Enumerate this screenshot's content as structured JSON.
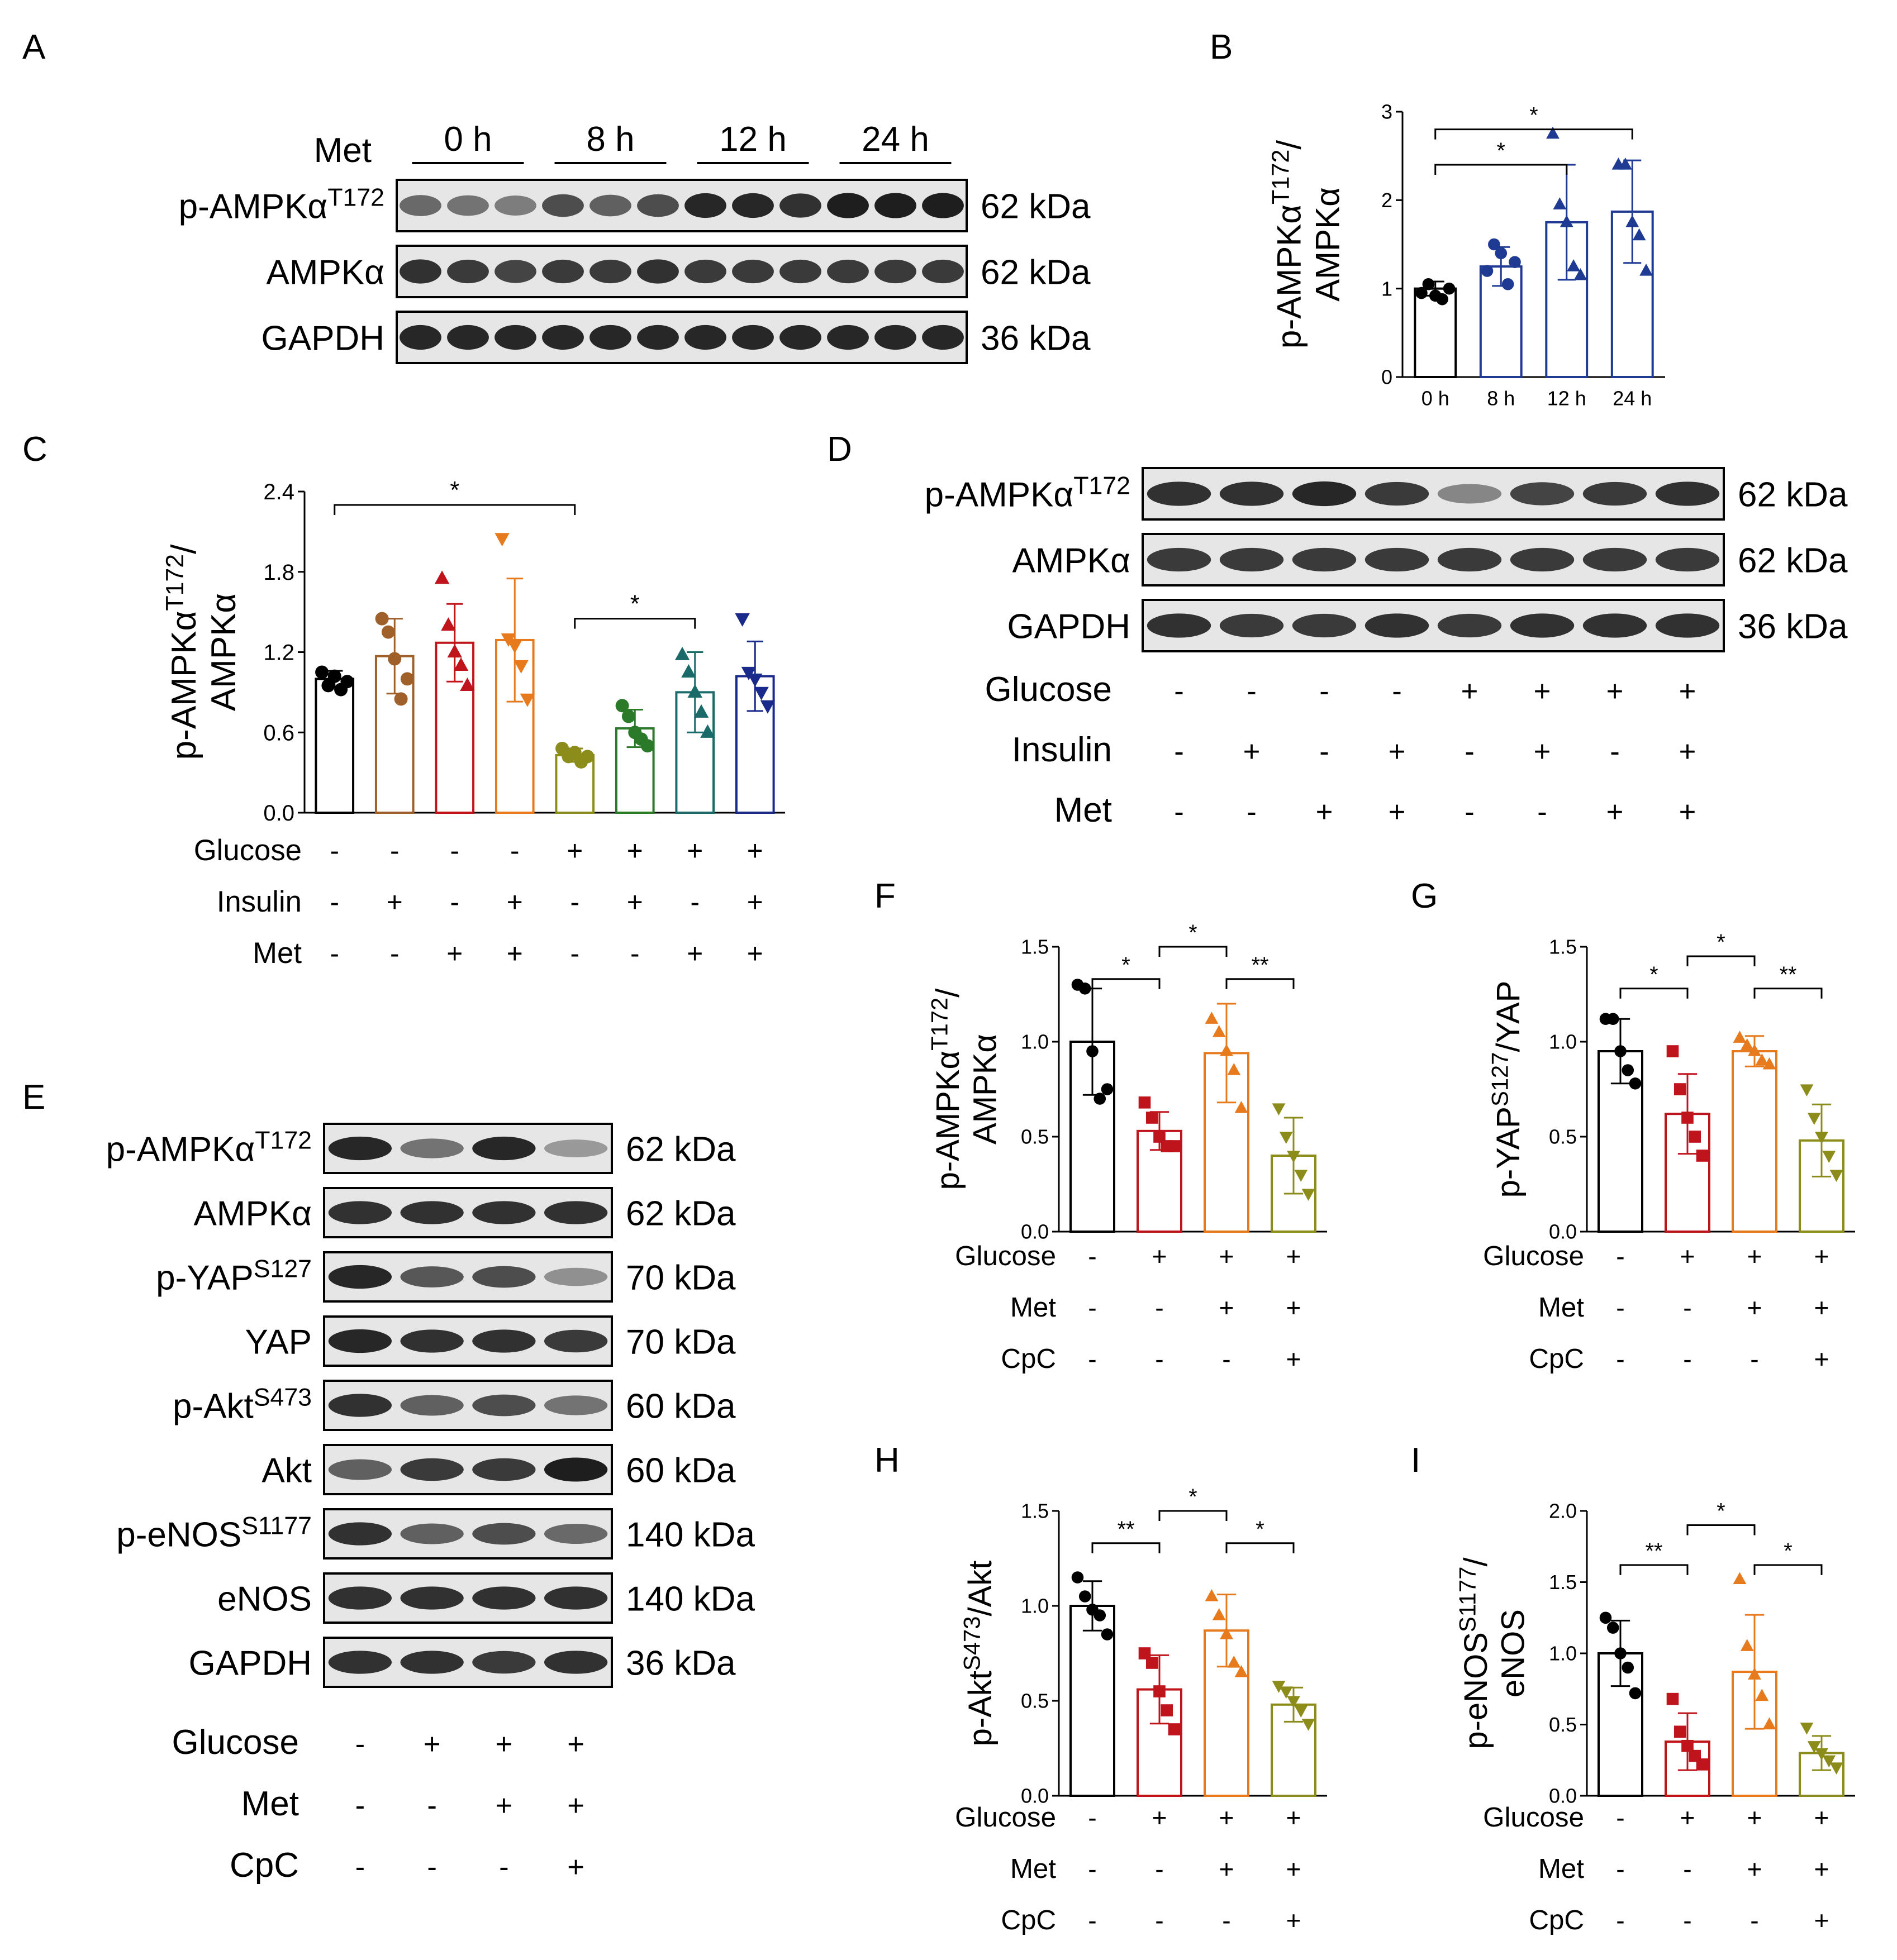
{
  "panels": {
    "A": {
      "label": "A",
      "met_label": "Met",
      "time_groups": [
        "0 h",
        "8 h",
        "12 h",
        "24 h"
      ],
      "bands": [
        {
          "name": "p-AMPKα",
          "sup": "T172",
          "kda": "62 kDa",
          "intensity": [
            0.55,
            0.5,
            0.45,
            0.7,
            0.6,
            0.7,
            0.9,
            0.9,
            0.85,
            0.95,
            0.95,
            0.95
          ]
        },
        {
          "name": "AMPKα",
          "sup": "",
          "kda": "62 kDa",
          "intensity": [
            0.85,
            0.8,
            0.75,
            0.8,
            0.8,
            0.85,
            0.8,
            0.8,
            0.8,
            0.8,
            0.8,
            0.8
          ]
        },
        {
          "name": "GAPDH",
          "sup": "",
          "kda": "36 kDa",
          "intensity": [
            0.9,
            0.9,
            0.9,
            0.9,
            0.9,
            0.9,
            0.9,
            0.9,
            0.9,
            0.9,
            0.9,
            0.9
          ]
        }
      ]
    },
    "D": {
      "label": "D",
      "bands": [
        {
          "name": "p-AMPKα",
          "sup": "T172",
          "kda": "62 kDa",
          "intensity": [
            0.85,
            0.85,
            0.9,
            0.8,
            0.4,
            0.75,
            0.8,
            0.85
          ]
        },
        {
          "name": "AMPKα",
          "sup": "",
          "kda": "62 kDa",
          "intensity": [
            0.8,
            0.8,
            0.8,
            0.8,
            0.8,
            0.8,
            0.8,
            0.8
          ]
        },
        {
          "name": "GAPDH",
          "sup": "",
          "kda": "36 kDa",
          "intensity": [
            0.85,
            0.8,
            0.8,
            0.85,
            0.8,
            0.85,
            0.85,
            0.85
          ]
        }
      ],
      "conditions": [
        {
          "name": "Glucose",
          "values": [
            "-",
            "-",
            "-",
            "-",
            "+",
            "+",
            "+",
            "+"
          ]
        },
        {
          "name": "Insulin",
          "values": [
            "-",
            "+",
            "-",
            "+",
            "-",
            "+",
            "-",
            "+"
          ]
        },
        {
          "name": "Met",
          "values": [
            "-",
            "-",
            "+",
            "+",
            "-",
            "-",
            "+",
            "+"
          ]
        }
      ]
    },
    "E": {
      "label": "E",
      "bands": [
        {
          "name": "p-AMPKα",
          "sup": "T172",
          "kda": "62 kDa",
          "intensity": [
            0.9,
            0.5,
            0.9,
            0.3
          ]
        },
        {
          "name": "AMPKα",
          "sup": "",
          "kda": "62 kDa",
          "intensity": [
            0.85,
            0.85,
            0.85,
            0.85
          ]
        },
        {
          "name": "p-YAP",
          "sup": "S127",
          "kda": "70 kDa",
          "intensity": [
            0.9,
            0.65,
            0.7,
            0.35
          ]
        },
        {
          "name": "YAP",
          "sup": "",
          "kda": "70 kDa",
          "intensity": [
            0.9,
            0.85,
            0.85,
            0.8
          ]
        },
        {
          "name": "p-Akt",
          "sup": "S473",
          "kda": "60 kDa",
          "intensity": [
            0.85,
            0.6,
            0.7,
            0.5
          ]
        },
        {
          "name": "Akt",
          "sup": "",
          "kda": "60 kDa",
          "intensity": [
            0.6,
            0.8,
            0.8,
            0.95
          ]
        },
        {
          "name": "p-eNOS",
          "sup": "S1177",
          "kda": "140 kDa",
          "intensity": [
            0.85,
            0.6,
            0.7,
            0.55
          ]
        },
        {
          "name": "eNOS",
          "sup": "",
          "kda": "140 kDa",
          "intensity": [
            0.85,
            0.85,
            0.85,
            0.85
          ]
        },
        {
          "name": "GAPDH",
          "sup": "",
          "kda": "36 kDa",
          "intensity": [
            0.85,
            0.85,
            0.8,
            0.85
          ]
        }
      ],
      "conditions": [
        {
          "name": "Glucose",
          "values": [
            "-",
            "+",
            "+",
            "+"
          ]
        },
        {
          "name": "Met",
          "values": [
            "-",
            "-",
            "+",
            "+"
          ]
        },
        {
          "name": "CpC",
          "values": [
            "-",
            "-",
            "-",
            "+"
          ]
        }
      ]
    }
  },
  "chart_data": [
    {
      "id": "B",
      "label": "B",
      "type": "bar",
      "ylabel_main": "p-AMPKα",
      "ylabel_sup": "T172",
      "ylabel_tail": "/",
      "ylabel_line2": "AMPKα",
      "ylim": [
        0,
        3
      ],
      "yticks": [
        "0",
        "1",
        "2",
        "3"
      ],
      "categories": [
        "0 h",
        "8 h",
        "12 h",
        "24 h"
      ],
      "values": [
        1.0,
        1.25,
        1.75,
        1.87
      ],
      "errors": [
        0.08,
        0.22,
        0.65,
        0.58
      ],
      "points": [
        [
          0.95,
          1.05,
          0.92,
          0.88,
          1.0
        ],
        [
          1.2,
          1.5,
          1.4,
          1.05,
          1.3
        ],
        [
          2.75,
          1.95,
          1.75,
          1.25,
          1.15
        ],
        [
          2.4,
          2.4,
          1.75,
          1.6,
          1.2
        ]
      ],
      "colors": [
        "#000000",
        "#1f3a93",
        "#1f3a93",
        "#1f3a93"
      ],
      "markers": [
        "circle",
        "circle",
        "triangle",
        "triangle"
      ],
      "significance": [
        {
          "from": 0,
          "to": 2,
          "level": 2.4,
          "text": "*"
        },
        {
          "from": 0,
          "to": 3,
          "level": 2.8,
          "text": "*"
        }
      ],
      "x_conditions": []
    },
    {
      "id": "C",
      "label": "C",
      "type": "bar",
      "ylabel_main": "p-AMPKα",
      "ylabel_sup": "T172",
      "ylabel_tail": "/",
      "ylabel_line2": "AMPKα",
      "ylim": [
        0,
        2.4
      ],
      "yticks": [
        "0.0",
        "0.6",
        "1.2",
        "1.8",
        "2.4"
      ],
      "categories": [
        "",
        "",
        "",
        "",
        "",
        "",
        "",
        ""
      ],
      "values": [
        1.0,
        1.17,
        1.27,
        1.29,
        0.43,
        0.63,
        0.9,
        1.02
      ],
      "errors": [
        0.06,
        0.28,
        0.29,
        0.46,
        0.05,
        0.14,
        0.3,
        0.26
      ],
      "points": [
        [
          1.05,
          0.95,
          1.02,
          0.92,
          0.98
        ],
        [
          1.45,
          1.35,
          1.15,
          0.85,
          1.0
        ],
        [
          1.75,
          1.4,
          1.2,
          1.1,
          0.95
        ],
        [
          2.05,
          1.3,
          1.25,
          1.1,
          0.85
        ],
        [
          0.48,
          0.42,
          0.45,
          0.38,
          0.42
        ],
        [
          0.8,
          0.72,
          0.6,
          0.55,
          0.5
        ],
        [
          1.18,
          1.05,
          0.9,
          0.75,
          0.6
        ],
        [
          1.45,
          1.05,
          1.0,
          0.9,
          0.8
        ]
      ],
      "colors": [
        "#000000",
        "#a0602a",
        "#c0141c",
        "#e87a1e",
        "#8c8c1a",
        "#2a7a2a",
        "#1a6a6a",
        "#1a2a8a"
      ],
      "markers": [
        "circle",
        "circle",
        "triangle",
        "triangle-down",
        "circle",
        "circle",
        "triangle",
        "triangle-down"
      ],
      "significance": [
        {
          "from": 0,
          "to": 4,
          "level": 2.3,
          "text": "*"
        },
        {
          "from": 4,
          "to": 6,
          "level": 1.45,
          "text": "*"
        }
      ],
      "x_conditions": [
        {
          "name": "Glucose",
          "values": [
            "-",
            "-",
            "-",
            "-",
            "+",
            "+",
            "+",
            "+"
          ]
        },
        {
          "name": "Insulin",
          "values": [
            "-",
            "+",
            "-",
            "+",
            "-",
            "+",
            "-",
            "+"
          ]
        },
        {
          "name": "Met",
          "values": [
            "-",
            "-",
            "+",
            "+",
            "-",
            "-",
            "+",
            "+"
          ]
        }
      ]
    },
    {
      "id": "F",
      "label": "F",
      "type": "bar",
      "ylabel_main": "p-AMPKα",
      "ylabel_sup": "T172",
      "ylabel_tail": "/",
      "ylabel_line2": "AMPKα",
      "ylim": [
        0,
        1.5
      ],
      "yticks": [
        "0.0",
        "0.5",
        "1.0",
        "1.5"
      ],
      "categories": [
        "",
        "",
        "",
        ""
      ],
      "values": [
        1.0,
        0.53,
        0.94,
        0.4
      ],
      "errors": [
        0.28,
        0.1,
        0.26,
        0.2
      ],
      "points": [
        [
          1.3,
          1.28,
          0.95,
          0.7,
          0.75
        ],
        [
          0.68,
          0.6,
          0.5,
          0.45,
          0.45
        ],
        [
          1.12,
          1.05,
          0.95,
          0.85,
          0.65
        ],
        [
          0.65,
          0.5,
          0.4,
          0.3,
          0.2
        ]
      ],
      "colors": [
        "#000000",
        "#c0141c",
        "#e87a1e",
        "#8c8c1a"
      ],
      "markers": [
        "circle",
        "square",
        "triangle",
        "triangle-down"
      ],
      "significance": [
        {
          "from": 0,
          "to": 1,
          "level": 1.33,
          "text": "*"
        },
        {
          "from": 1,
          "to": 2,
          "level": 1.5,
          "text": "*"
        },
        {
          "from": 2,
          "to": 3,
          "level": 1.33,
          "text": "**"
        }
      ],
      "x_conditions": [
        {
          "name": "Glucose",
          "values": [
            "-",
            "+",
            "+",
            "+"
          ]
        },
        {
          "name": "Met",
          "values": [
            "-",
            "-",
            "+",
            "+"
          ]
        },
        {
          "name": "CpC",
          "values": [
            "-",
            "-",
            "-",
            "+"
          ]
        }
      ]
    },
    {
      "id": "G",
      "label": "G",
      "type": "bar",
      "ylabel_main": "p-YAP",
      "ylabel_sup": "S127",
      "ylabel_tail": "/YAP",
      "ylabel_line2": "",
      "ylim": [
        0,
        1.5
      ],
      "yticks": [
        "0.0",
        "0.5",
        "1.0",
        "1.5"
      ],
      "categories": [
        "",
        "",
        "",
        ""
      ],
      "values": [
        0.95,
        0.62,
        0.95,
        0.48
      ],
      "errors": [
        0.17,
        0.21,
        0.08,
        0.19
      ],
      "points": [
        [
          1.12,
          1.12,
          0.95,
          0.85,
          0.78
        ],
        [
          0.95,
          0.75,
          0.6,
          0.5,
          0.4
        ],
        [
          1.02,
          0.98,
          0.95,
          0.9,
          0.88
        ],
        [
          0.75,
          0.6,
          0.5,
          0.4,
          0.3
        ]
      ],
      "colors": [
        "#000000",
        "#c0141c",
        "#e87a1e",
        "#8c8c1a"
      ],
      "markers": [
        "circle",
        "square",
        "triangle",
        "triangle-down"
      ],
      "significance": [
        {
          "from": 0,
          "to": 1,
          "level": 1.28,
          "text": "*"
        },
        {
          "from": 1,
          "to": 2,
          "level": 1.45,
          "text": "*"
        },
        {
          "from": 2,
          "to": 3,
          "level": 1.28,
          "text": "**"
        }
      ],
      "x_conditions": [
        {
          "name": "Glucose",
          "values": [
            "-",
            "+",
            "+",
            "+"
          ]
        },
        {
          "name": "Met",
          "values": [
            "-",
            "-",
            "+",
            "+"
          ]
        },
        {
          "name": "CpC",
          "values": [
            "-",
            "-",
            "-",
            "+"
          ]
        }
      ]
    },
    {
      "id": "H",
      "label": "H",
      "type": "bar",
      "ylabel_main": "p-Akt",
      "ylabel_sup": "S473",
      "ylabel_tail": "/Akt",
      "ylabel_line2": "",
      "ylim": [
        0,
        1.5
      ],
      "yticks": [
        "0.0",
        "0.5",
        "1.0",
        "1.5"
      ],
      "categories": [
        "",
        "",
        "",
        ""
      ],
      "values": [
        1.0,
        0.56,
        0.87,
        0.48
      ],
      "errors": [
        0.13,
        0.18,
        0.19,
        0.09
      ],
      "points": [
        [
          1.15,
          1.05,
          0.98,
          0.95,
          0.85
        ],
        [
          0.75,
          0.7,
          0.55,
          0.45,
          0.35
        ],
        [
          1.05,
          0.95,
          0.85,
          0.7,
          0.65
        ],
        [
          0.58,
          0.55,
          0.5,
          0.45,
          0.38
        ]
      ],
      "colors": [
        "#000000",
        "#c0141c",
        "#e87a1e",
        "#8c8c1a"
      ],
      "markers": [
        "circle",
        "square",
        "triangle",
        "triangle-down"
      ],
      "significance": [
        {
          "from": 0,
          "to": 1,
          "level": 1.33,
          "text": "**"
        },
        {
          "from": 1,
          "to": 2,
          "level": 1.5,
          "text": "*"
        },
        {
          "from": 2,
          "to": 3,
          "level": 1.33,
          "text": "*"
        }
      ],
      "x_conditions": [
        {
          "name": "Glucose",
          "values": [
            "-",
            "+",
            "+",
            "+"
          ]
        },
        {
          "name": "Met",
          "values": [
            "-",
            "-",
            "+",
            "+"
          ]
        },
        {
          "name": "CpC",
          "values": [
            "-",
            "-",
            "-",
            "+"
          ]
        }
      ]
    },
    {
      "id": "I",
      "label": "I",
      "type": "bar",
      "ylabel_main": "p-eNOS",
      "ylabel_sup": "S1177",
      "ylabel_tail": "/",
      "ylabel_line2": "eNOS",
      "ylim": [
        0,
        2.0
      ],
      "yticks": [
        "0.0",
        "0.5",
        "1.0",
        "1.5",
        "2.0"
      ],
      "categories": [
        "",
        "",
        "",
        ""
      ],
      "values": [
        1.0,
        0.38,
        0.87,
        0.3
      ],
      "errors": [
        0.23,
        0.2,
        0.4,
        0.12
      ],
      "points": [
        [
          1.25,
          1.18,
          1.0,
          0.9,
          0.72
        ],
        [
          0.68,
          0.45,
          0.35,
          0.28,
          0.22
        ],
        [
          1.52,
          1.05,
          0.85,
          0.7,
          0.5
        ],
        [
          0.48,
          0.35,
          0.3,
          0.25,
          0.2
        ]
      ],
      "colors": [
        "#000000",
        "#c0141c",
        "#e87a1e",
        "#8c8c1a"
      ],
      "markers": [
        "circle",
        "square",
        "triangle",
        "triangle-down"
      ],
      "significance": [
        {
          "from": 0,
          "to": 1,
          "level": 1.62,
          "text": "**"
        },
        {
          "from": 1,
          "to": 2,
          "level": 1.9,
          "text": "*"
        },
        {
          "from": 2,
          "to": 3,
          "level": 1.62,
          "text": "*"
        }
      ],
      "x_conditions": [
        {
          "name": "Glucose",
          "values": [
            "-",
            "+",
            "+",
            "+"
          ]
        },
        {
          "name": "Met",
          "values": [
            "-",
            "-",
            "+",
            "+"
          ]
        },
        {
          "name": "CpC",
          "values": [
            "-",
            "-",
            "-",
            "+"
          ]
        }
      ]
    }
  ]
}
